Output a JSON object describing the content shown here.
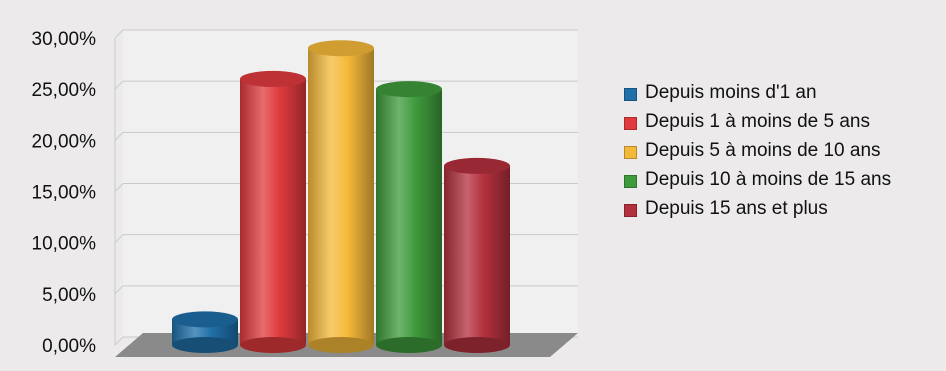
{
  "chart_data": {
    "type": "bar",
    "style": "3d-cylinder",
    "title": "",
    "xlabel": "",
    "ylabel": "",
    "ylim": [
      0,
      30
    ],
    "yticks": [
      "0,00%",
      "5,00%",
      "10,00%",
      "15,00%",
      "20,00%",
      "25,00%",
      "30,00%"
    ],
    "grid": true,
    "legend_position": "right",
    "series": [
      {
        "name": "Depuis moins d'1 an",
        "value": 2.5,
        "color": "#1f6fa8"
      },
      {
        "name": "Depuis 1 à moins de 5 ans",
        "value": 26.0,
        "color": "#e03a3e"
      },
      {
        "name": "Depuis 5 à moins de 10 ans",
        "value": 29.0,
        "color": "#f5b93a"
      },
      {
        "name": "Depuis 10 à moins de 15 ans",
        "value": 25.0,
        "color": "#3f9a3c"
      },
      {
        "name": "Depuis 15 ans et plus",
        "value": 17.5,
        "color": "#b3303d"
      }
    ]
  }
}
